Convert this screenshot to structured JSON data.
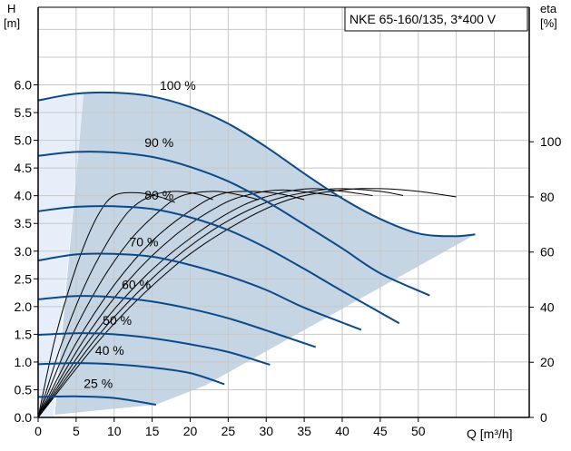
{
  "chart_data": {
    "type": "line",
    "title": "NKE 65-160/135, 3*400 V",
    "xlabel": "Q [m³/h]",
    "ylabel_left": "H",
    "ylabel_left_unit": "[m]",
    "ylabel_right": "eta",
    "ylabel_right_unit": "[%]",
    "x_ticks": [
      0,
      5,
      10,
      15,
      20,
      25,
      30,
      35,
      40,
      45,
      50
    ],
    "y_ticks_left": [
      "0.0",
      "0.5",
      "1.0",
      "1.5",
      "2.0",
      "2.5",
      "3.0",
      "3.5",
      "4.0",
      "4.5",
      "5.0",
      "5.5",
      "6.0"
    ],
    "y_ticks_right": [
      "0",
      "20",
      "40",
      "60",
      "80",
      "100"
    ],
    "xlim": [
      0,
      64.6
    ],
    "ylim_left": [
      0,
      7.4
    ],
    "ylim_right": [
      0,
      148.8
    ],
    "grid": true,
    "colors": {
      "head_curve": "#0a4a8a",
      "efficiency_curve": "#000000",
      "operating_region": "#c5d5e4",
      "low_flow_region": "#e6eff9",
      "grid": "#c8c8c8"
    },
    "head_curves": [
      {
        "label": "100 %",
        "points": [
          [
            0,
            5.72
          ],
          [
            5,
            5.84
          ],
          [
            10,
            5.86
          ],
          [
            15,
            5.79
          ],
          [
            20,
            5.6
          ],
          [
            25,
            5.3
          ],
          [
            30,
            4.88
          ],
          [
            35,
            4.4
          ],
          [
            40,
            3.95
          ],
          [
            45,
            3.58
          ],
          [
            50,
            3.32
          ],
          [
            54.6,
            3.27
          ],
          [
            57.5,
            3.3
          ]
        ]
      },
      {
        "label": "90 %",
        "points": [
          [
            0,
            4.72
          ],
          [
            5,
            4.79
          ],
          [
            10,
            4.78
          ],
          [
            15,
            4.7
          ],
          [
            20,
            4.52
          ],
          [
            25,
            4.26
          ],
          [
            30,
            3.9
          ],
          [
            35,
            3.48
          ],
          [
            40,
            3.05
          ],
          [
            45,
            2.6
          ],
          [
            51.5,
            2.2
          ]
        ]
      },
      {
        "label": "80 %",
        "points": [
          [
            0,
            3.72
          ],
          [
            5,
            3.8
          ],
          [
            10,
            3.81
          ],
          [
            15,
            3.76
          ],
          [
            20,
            3.61
          ],
          [
            25,
            3.38
          ],
          [
            30,
            3.06
          ],
          [
            35,
            2.68
          ],
          [
            40,
            2.28
          ],
          [
            47.5,
            1.7
          ]
        ]
      },
      {
        "label": "70 %",
        "points": [
          [
            0,
            2.83
          ],
          [
            5,
            2.94
          ],
          [
            10,
            2.95
          ],
          [
            15,
            2.9
          ],
          [
            20,
            2.75
          ],
          [
            25,
            2.55
          ],
          [
            30,
            2.3
          ],
          [
            35,
            1.98
          ],
          [
            42.5,
            1.58
          ]
        ]
      },
      {
        "label": "60 %",
        "points": [
          [
            0,
            2.13
          ],
          [
            5,
            2.19
          ],
          [
            10,
            2.17
          ],
          [
            15,
            2.09
          ],
          [
            20,
            1.96
          ],
          [
            25,
            1.79
          ],
          [
            30,
            1.57
          ],
          [
            36.5,
            1.27
          ]
        ]
      },
      {
        "label": "50 %",
        "points": [
          [
            0,
            1.49
          ],
          [
            5,
            1.52
          ],
          [
            10,
            1.5
          ],
          [
            15,
            1.43
          ],
          [
            20,
            1.32
          ],
          [
            25,
            1.18
          ],
          [
            30.5,
            0.95
          ]
        ]
      },
      {
        "label": "40 %",
        "points": [
          [
            0,
            0.96
          ],
          [
            5,
            0.98
          ],
          [
            10,
            0.96
          ],
          [
            15,
            0.9
          ],
          [
            20,
            0.8
          ],
          [
            24.5,
            0.6
          ]
        ]
      },
      {
        "label": "25 %",
        "points": [
          [
            0,
            0.37
          ],
          [
            5,
            0.38
          ],
          [
            10,
            0.35
          ],
          [
            15.5,
            0.23
          ]
        ]
      }
    ],
    "efficiency_curves": [
      {
        "points": [
          [
            0,
            0
          ],
          [
            2,
            26
          ],
          [
            4,
            46
          ],
          [
            6,
            62
          ],
          [
            8,
            74
          ],
          [
            10,
            80.5
          ],
          [
            13,
            81.5
          ],
          [
            16,
            80
          ],
          [
            18,
            78
          ]
        ]
      },
      {
        "points": [
          [
            0,
            0
          ],
          [
            3,
            26
          ],
          [
            6,
            47
          ],
          [
            9,
            63
          ],
          [
            12,
            75
          ],
          [
            15,
            80.5
          ],
          [
            18,
            82
          ],
          [
            21,
            81
          ],
          [
            23,
            79
          ]
        ]
      },
      {
        "points": [
          [
            0,
            0
          ],
          [
            4,
            27
          ],
          [
            8,
            48
          ],
          [
            12,
            64
          ],
          [
            16,
            75
          ],
          [
            19,
            80.5
          ],
          [
            23,
            82
          ],
          [
            26,
            81
          ],
          [
            29,
            79
          ]
        ]
      },
      {
        "points": [
          [
            0,
            0
          ],
          [
            5,
            27
          ],
          [
            10,
            48
          ],
          [
            15,
            64
          ],
          [
            20,
            75
          ],
          [
            24,
            81
          ],
          [
            28,
            82
          ],
          [
            32,
            81
          ],
          [
            35,
            79
          ]
        ]
      },
      {
        "points": [
          [
            0,
            0
          ],
          [
            6,
            28
          ],
          [
            12,
            50
          ],
          [
            18,
            66
          ],
          [
            24,
            77
          ],
          [
            28,
            81
          ],
          [
            32,
            82.5
          ],
          [
            36,
            81.5
          ],
          [
            40,
            80
          ]
        ]
      },
      {
        "points": [
          [
            0,
            0
          ],
          [
            7,
            29
          ],
          [
            14,
            51
          ],
          [
            21,
            67
          ],
          [
            27,
            77
          ],
          [
            32,
            81.5
          ],
          [
            36,
            83
          ],
          [
            40,
            82
          ],
          [
            44,
            80.5
          ]
        ]
      },
      {
        "points": [
          [
            0,
            0
          ],
          [
            8,
            30
          ],
          [
            16,
            53
          ],
          [
            23,
            68
          ],
          [
            30,
            78
          ],
          [
            36,
            82
          ],
          [
            40,
            83
          ],
          [
            45,
            82
          ],
          [
            48,
            80.5
          ]
        ]
      },
      {
        "points": [
          [
            0,
            0
          ],
          [
            9,
            31
          ],
          [
            18,
            55
          ],
          [
            26,
            70
          ],
          [
            33,
            79
          ],
          [
            40,
            82.5
          ],
          [
            45,
            83
          ],
          [
            50,
            82
          ],
          [
            55,
            80
          ]
        ]
      }
    ]
  }
}
